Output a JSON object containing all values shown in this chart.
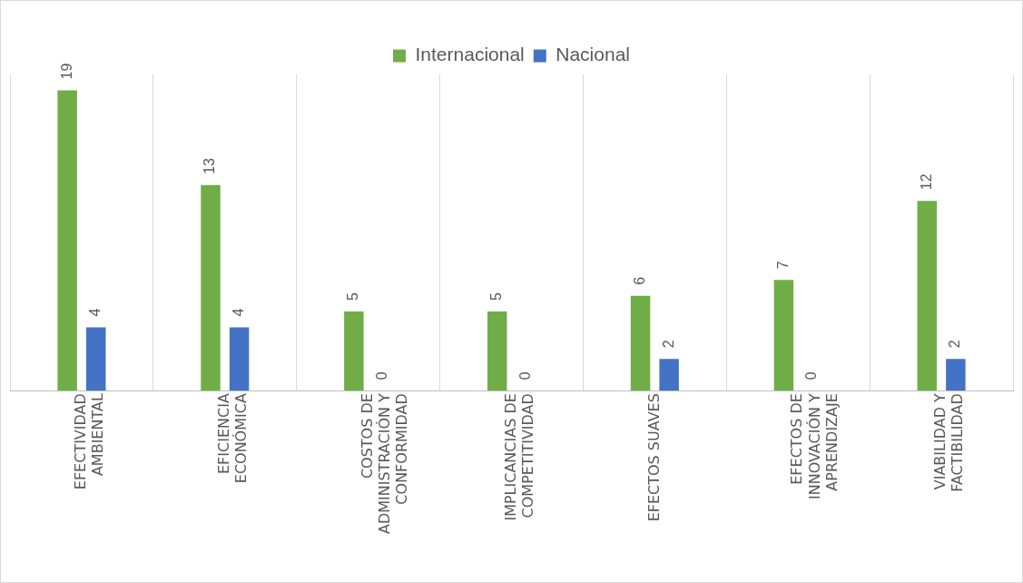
{
  "chart_data": {
    "type": "bar",
    "categories": [
      "EFECTIVIDAD AMBIENTAL",
      "EFICIENCIA ECONÓMICA",
      "COSTOS DE ADMINISTRACIÓN Y CONFORMIDAD",
      "IMPLICANCIAS DE COMPETITIVIDAD",
      "EFECTOS SUAVES",
      "EFECTOS DE INNOVACIÓN Y APRENDIZAJE",
      "VIABILIDAD Y FACTIBILIDAD"
    ],
    "series": [
      {
        "name": "Internacional",
        "color": "#70ad47",
        "values": [
          19,
          13,
          5,
          5,
          6,
          7,
          12
        ]
      },
      {
        "name": "Nacional",
        "color": "#4472c4",
        "values": [
          4,
          4,
          0,
          0,
          2,
          0,
          2
        ]
      }
    ],
    "data_labels": true,
    "grid": "x",
    "legend": "top"
  }
}
